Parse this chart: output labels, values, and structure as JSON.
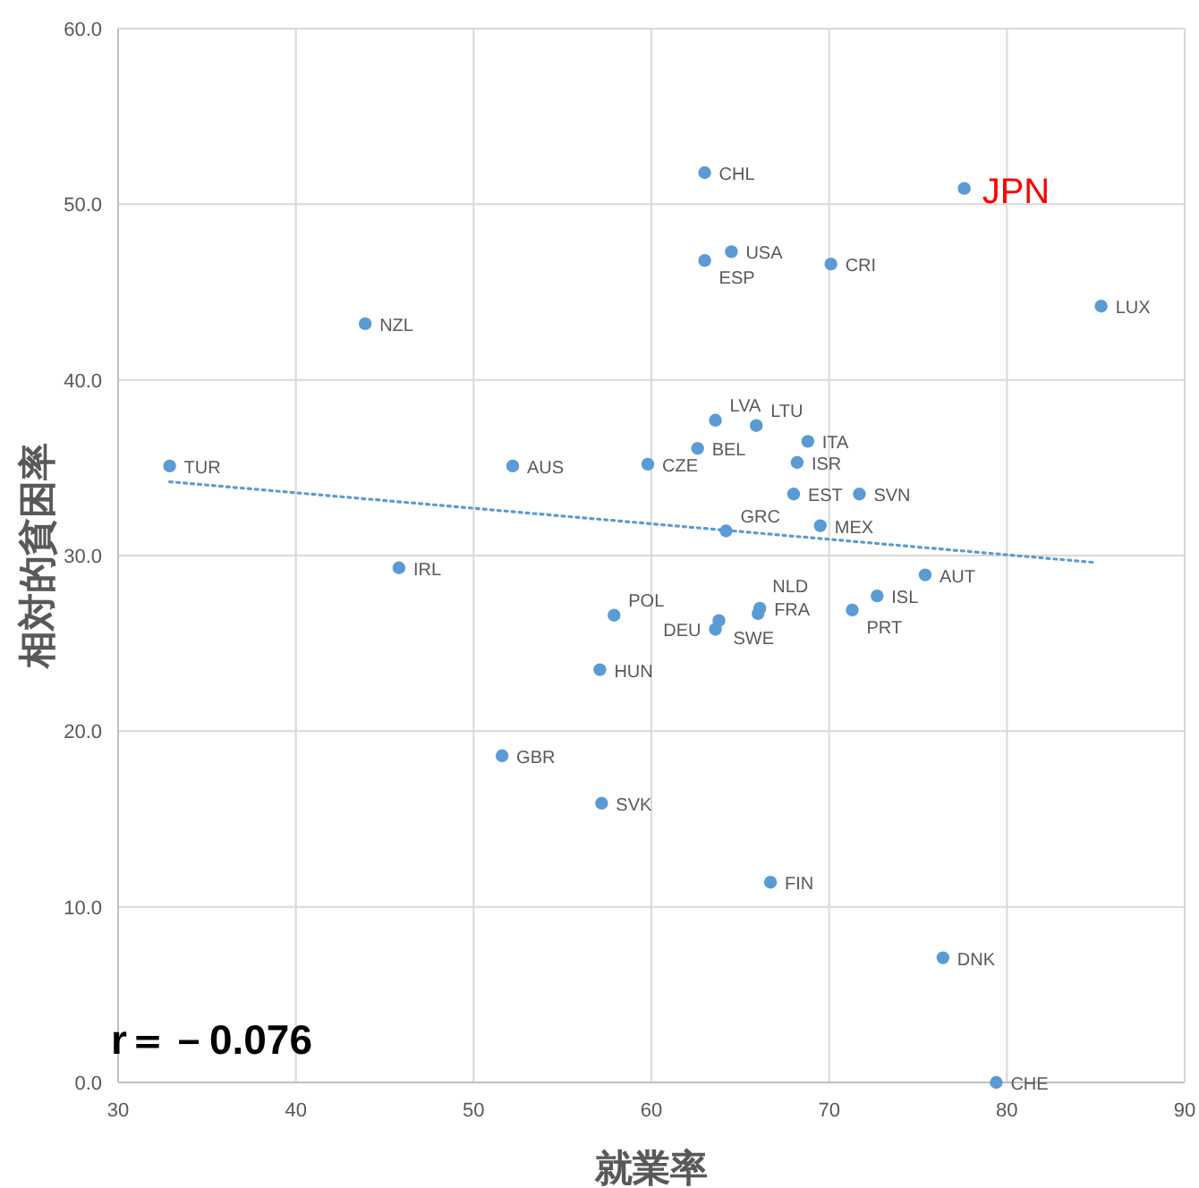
{
  "chart_data": {
    "type": "scatter",
    "xlabel": "就業率",
    "ylabel": "相対的貧困率",
    "xlim": [
      30,
      90
    ],
    "xticks": [
      30,
      40,
      50,
      60,
      70,
      80,
      90
    ],
    "ylim": [
      0,
      60
    ],
    "yticks": [
      {
        "value": 0,
        "label": "0.0"
      },
      {
        "value": 10,
        "label": "10.0"
      },
      {
        "value": 20,
        "label": "20.0"
      },
      {
        "value": 30,
        "label": "30.0"
      },
      {
        "value": 40,
        "label": "40.0"
      },
      {
        "value": 50,
        "label": "50.0"
      },
      {
        "value": 60,
        "label": "60.0"
      }
    ],
    "grid": true,
    "marker": "circle",
    "series": [
      {
        "type": "scatter",
        "color": "#5b9bd5",
        "x": [
          32.9,
          43.9,
          52.2,
          45.8,
          59.8,
          63.0,
          63.0,
          64.5,
          70.1,
          85.3,
          63.6,
          65.9,
          62.6,
          68.8,
          68.2,
          68.0,
          71.7,
          64.2,
          69.5,
          75.4,
          72.7,
          66.1,
          71.3,
          63.8,
          66.0,
          63.6,
          57.9,
          57.1,
          51.6,
          57.2,
          66.7,
          76.4,
          79.4
        ],
        "values": [
          35.1,
          43.2,
          35.1,
          29.3,
          35.2,
          51.8,
          46.8,
          47.3,
          46.6,
          44.2,
          37.7,
          37.4,
          36.1,
          36.5,
          35.3,
          33.5,
          33.5,
          31.4,
          31.7,
          28.9,
          27.7,
          27.0,
          26.9,
          26.3,
          26.7,
          25.8,
          26.6,
          23.5,
          18.6,
          15.9,
          11.4,
          7.1,
          0.0
        ],
        "value_labels": [
          "TUR",
          "NZL",
          "AUS",
          "IRL",
          "CZE",
          "CHL",
          "ESP",
          "USA",
          "CRI",
          "LUX",
          "LVA",
          "LTU",
          "BEL",
          "ITA",
          "ISR",
          "EST",
          "SVN",
          "GRC",
          "MEX",
          "AUT",
          "ISL",
          "FRA",
          "PRT",
          "SWE",
          "NLD",
          "DEU",
          "POL",
          "HUN",
          "GBR",
          "SVK",
          "FIN",
          "DNK",
          "CHE"
        ]
      },
      {
        "type": "scatter",
        "color": "#5b9bd5",
        "x": [
          77.6
        ],
        "values": [
          50.9
        ],
        "value_labels": [
          null
        ]
      },
      {
        "type": "line",
        "color": "#5b9bd5",
        "line_style": "dotted",
        "marker": "none",
        "x": [
          32.9,
          85.0
        ],
        "values": [
          34.2,
          29.6
        ]
      }
    ],
    "annotations": [
      "r＝－0.076",
      {
        "text": "JPN",
        "x": 77.6,
        "y": 50.9
      }
    ]
  }
}
